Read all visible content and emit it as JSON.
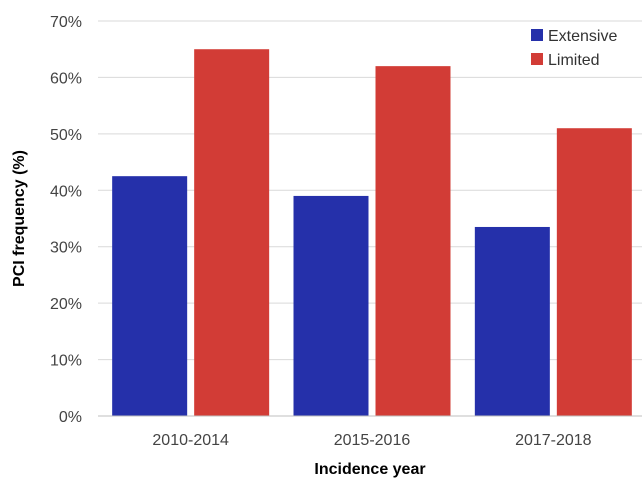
{
  "chart_data": {
    "type": "bar",
    "title": "",
    "xlabel": "Incidence year",
    "ylabel": "PCI frequency (%)",
    "categories": [
      "2010-2014",
      "2015-2016",
      "2017-2018"
    ],
    "series": [
      {
        "name": "Extensive",
        "color": "#2530aa",
        "values": [
          42.5,
          39.0,
          33.5
        ]
      },
      {
        "name": "Limited",
        "color": "#d23c36",
        "values": [
          65.0,
          62.0,
          51.0
        ]
      }
    ],
    "ylim": [
      0,
      70
    ],
    "yticks": [
      0,
      10,
      20,
      30,
      40,
      50,
      60,
      70
    ],
    "ytick_labels": [
      "0%",
      "10%",
      "20%",
      "30%",
      "40%",
      "50%",
      "60%",
      "70%"
    ],
    "grid": true,
    "legend_position": "top-right"
  }
}
